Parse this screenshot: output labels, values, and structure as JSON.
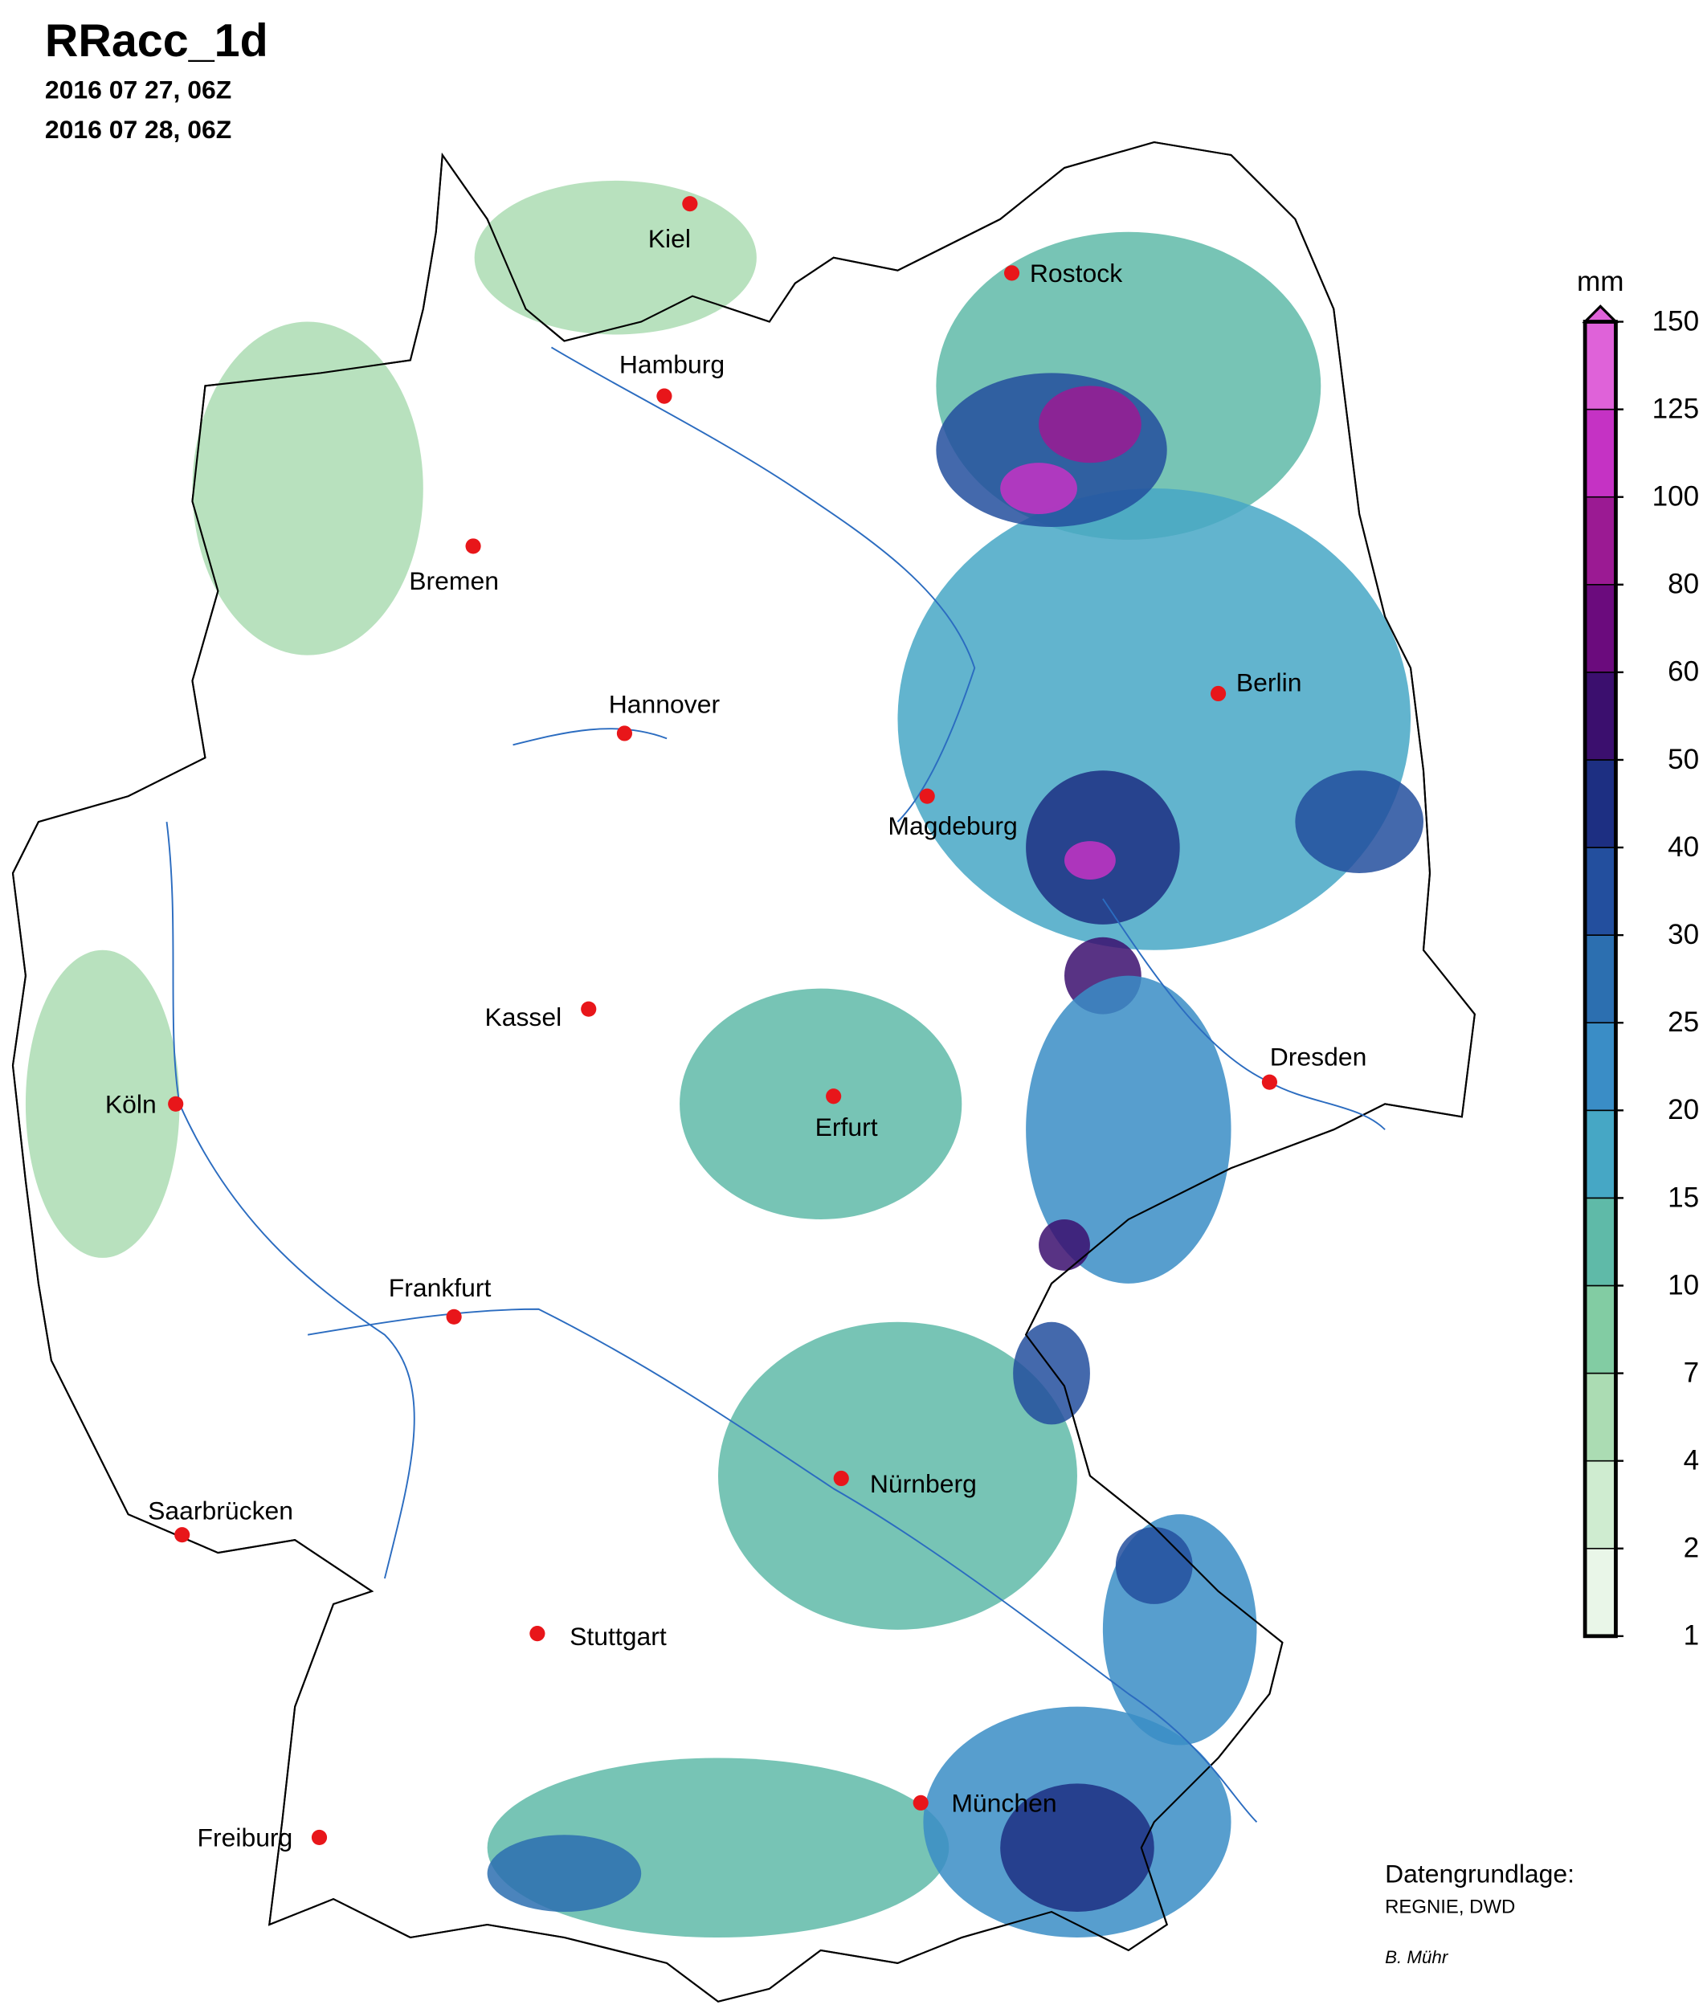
{
  "header": {
    "title": "RRacc_1d",
    "lines": [
      "2016 07 27, 06Z",
      "2016 07 28, 06Z"
    ]
  },
  "cities": [
    {
      "name": "Kiel"
    },
    {
      "name": "Rostock"
    },
    {
      "name": "Hamburg"
    },
    {
      "name": "Bremen"
    },
    {
      "name": "Hannover"
    },
    {
      "name": "Berlin"
    },
    {
      "name": "Magdeburg"
    },
    {
      "name": "Kassel"
    },
    {
      "name": "Dresden"
    },
    {
      "name": "Köln"
    },
    {
      "name": "Erfurt"
    },
    {
      "name": "Frankfurt"
    },
    {
      "name": "Nürnberg"
    },
    {
      "name": "Saarbrücken"
    },
    {
      "name": "Stuttgart"
    },
    {
      "name": "München"
    },
    {
      "name": "Freiburg"
    }
  ],
  "legend": {
    "unit": "mm",
    "levels": [
      1,
      2,
      4,
      7,
      10,
      15,
      20,
      25,
      30,
      40,
      50,
      60,
      80,
      100,
      125,
      150
    ],
    "colors": [
      "#e9f6e8",
      "#cfecd0",
      "#abdcb3",
      "#82cca3",
      "#5fbaa8",
      "#46a7c5",
      "#3a8dc6",
      "#2c6fb0",
      "#234f9e",
      "#1d2f82",
      "#3b0f6e",
      "#6b0b7d",
      "#9b1a93",
      "#c532c4",
      "#df62d9"
    ]
  },
  "credits": {
    "source_label": "Datengrundlage:",
    "source": "REGNIE, DWD",
    "author": "B. Mühr"
  }
}
